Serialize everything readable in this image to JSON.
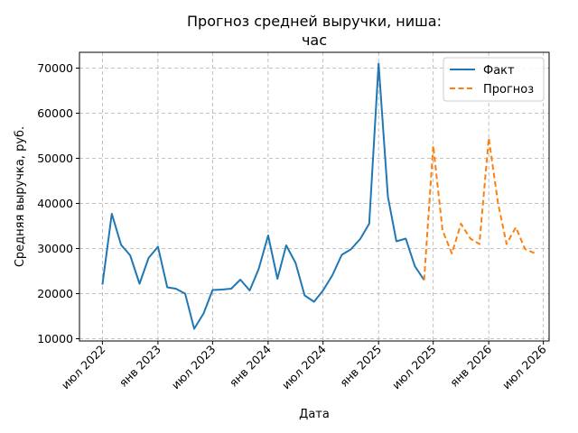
{
  "chart_data": {
    "type": "line",
    "title_lines": [
      "Прогноз средней выручки, ниша:",
      "час"
    ],
    "xlabel": "Дата",
    "ylabel": "Средняя выручка, руб.",
    "xlim": [
      "2022-04-16",
      "2026-07-20"
    ],
    "ylim": [
      9500,
      73500
    ],
    "grid": true,
    "legend_position": "top-right",
    "x_ticks": [
      {
        "date": "2022-07-01",
        "label": "июл 2022"
      },
      {
        "date": "2023-01-01",
        "label": "янв 2023"
      },
      {
        "date": "2023-07-01",
        "label": "июл 2023"
      },
      {
        "date": "2024-01-01",
        "label": "янв 2024"
      },
      {
        "date": "2024-07-01",
        "label": "июл 2024"
      },
      {
        "date": "2025-01-01",
        "label": "янв 2025"
      },
      {
        "date": "2025-07-01",
        "label": "июл 2025"
      },
      {
        "date": "2026-01-01",
        "label": "янв 2026"
      },
      {
        "date": "2026-07-01",
        "label": "июл 2026"
      }
    ],
    "y_ticks": [
      10000,
      20000,
      30000,
      40000,
      50000,
      60000,
      70000
    ],
    "series": [
      {
        "name": "Факт",
        "color": "#1f77b4",
        "style": "solid",
        "x": [
          "2022-07-01",
          "2022-08-01",
          "2022-09-01",
          "2022-10-01",
          "2022-11-01",
          "2022-12-01",
          "2023-01-01",
          "2023-02-01",
          "2023-03-01",
          "2023-04-01",
          "2023-05-01",
          "2023-06-01",
          "2023-07-01",
          "2023-08-01",
          "2023-09-01",
          "2023-10-01",
          "2023-11-01",
          "2023-12-01",
          "2024-01-01",
          "2024-02-01",
          "2024-03-01",
          "2024-04-01",
          "2024-05-01",
          "2024-06-01",
          "2024-07-01",
          "2024-08-01",
          "2024-09-01",
          "2024-10-01",
          "2024-11-01",
          "2024-12-01",
          "2025-01-01",
          "2025-02-01",
          "2025-03-01",
          "2025-04-01",
          "2025-05-01",
          "2025-06-01"
        ],
        "y": [
          22000,
          37700,
          30800,
          28500,
          22200,
          27900,
          30400,
          21400,
          21100,
          20000,
          12200,
          15600,
          20800,
          20900,
          21100,
          23100,
          20700,
          25500,
          32900,
          23300,
          30700,
          26800,
          19600,
          18200,
          20700,
          24100,
          28600,
          29800,
          32100,
          35500,
          71000,
          41500,
          31600,
          32200,
          26100,
          23000
        ]
      },
      {
        "name": "Прогноз",
        "color": "#ff7f0e",
        "style": "dashed",
        "x": [
          "2025-06-01",
          "2025-07-01",
          "2025-08-01",
          "2025-09-01",
          "2025-10-01",
          "2025-11-01",
          "2025-12-01",
          "2026-01-01",
          "2026-02-01",
          "2026-03-01",
          "2026-04-01",
          "2026-05-01",
          "2026-06-01"
        ],
        "y": [
          23000,
          52800,
          34000,
          28900,
          35500,
          32200,
          31000,
          54500,
          40000,
          31000,
          34700,
          29900,
          29000
        ]
      }
    ]
  }
}
